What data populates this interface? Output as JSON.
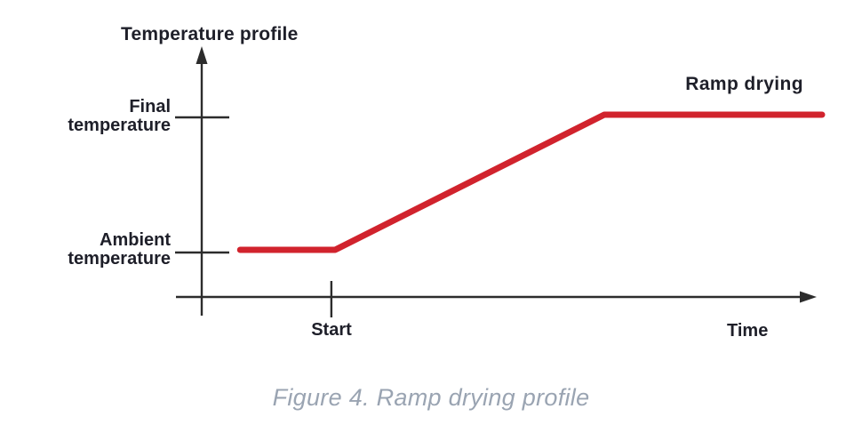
{
  "figure": {
    "caption": "Figure 4. Ramp drying profile",
    "caption_color": "#9aa4b2",
    "text_color": "#1e1f29",
    "background_color": "#ffffff"
  },
  "chart_data": {
    "type": "line",
    "title": "Temperature profile",
    "xlabel": "Time",
    "ylabel": "Temperature profile",
    "axis_color": "#2c2c2c",
    "grid": false,
    "legend_position": "none",
    "x_ticks": [
      {
        "label": "Start",
        "t": 0.209
      }
    ],
    "y_ticks": [
      {
        "label": "Final\ntemperature",
        "value": 1
      },
      {
        "label": "Ambient\ntemperature",
        "value": 0
      }
    ],
    "y_axis_meaning": "relative temperature: 0 = ambient temperature, 1 = final temperature",
    "x_axis_meaning": "time (unitless, fraction of shown axis)",
    "series": [
      {
        "name": "Ramp drying",
        "color": "#d1232d",
        "stroke_width": 7,
        "points": [
          {
            "t": 0.062,
            "temp": 0
          },
          {
            "t": 0.215,
            "temp": 0
          },
          {
            "t": 0.649,
            "temp": 1
          },
          {
            "t": 1.0,
            "temp": 1
          }
        ]
      }
    ]
  }
}
